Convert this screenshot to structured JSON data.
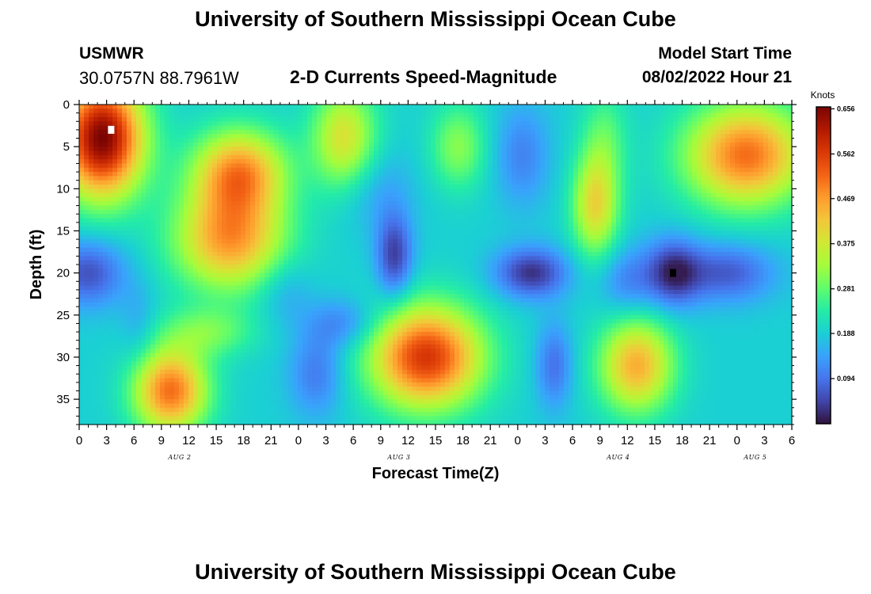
{
  "header": {
    "title": "University of Southern Mississippi Ocean Cube",
    "station_name": "USMWR",
    "station_coords": "30.0757N  88.7961W",
    "subtitle": "2-D Currents Speed-Magnitude",
    "model_start_label": "Model Start Time",
    "model_start_value": "08/02/2022 Hour 21"
  },
  "footer": {
    "title": "University of Southern Mississippi Ocean Cube"
  },
  "chart_data": {
    "type": "heatmap",
    "title": "2-D Currents Speed-Magnitude",
    "xlabel": "Forecast Time(Z)",
    "ylabel": "Depth (ft)",
    "colorbar_label": "Knots",
    "x_range_hours": [
      0,
      78
    ],
    "y_range_ft": [
      0,
      38
    ],
    "y_inverted": true,
    "x_tick_labels": [
      "0",
      "3",
      "6",
      "9",
      "12",
      "15",
      "18",
      "21",
      "0",
      "3",
      "6",
      "9",
      "12",
      "15",
      "18",
      "21",
      "0",
      "3",
      "6",
      "9",
      "12",
      "15",
      "18",
      "21",
      "0",
      "3",
      "6"
    ],
    "y_ticks": [
      0,
      5,
      10,
      15,
      20,
      25,
      30,
      35
    ],
    "date_labels": [
      {
        "text": "AUG 2",
        "hour": 11
      },
      {
        "text": "AUG 3",
        "hour": 35
      },
      {
        "text": "AUG 4",
        "hour": 59
      },
      {
        "text": "AUG 5",
        "hour": 74
      }
    ],
    "colorbar": {
      "min": 0.0,
      "max": 0.66,
      "ticks": [
        0.094,
        0.188,
        0.281,
        0.375,
        0.469,
        0.562,
        0.656
      ],
      "colors": [
        "#30123b",
        "#4145ab",
        "#4675ed",
        "#39a2fc",
        "#1bcfd4",
        "#24eca6",
        "#61fc6c",
        "#a4fc3c",
        "#d1e834",
        "#f3c63a",
        "#fe9b2d",
        "#f36315",
        "#d93806",
        "#b11901",
        "#7a0402"
      ]
    },
    "speed_field": {
      "base_knots": 0.19,
      "hotspots_hour_ft_knots": [
        [
          2.5,
          4,
          0.47,
          4.5,
          7
        ],
        [
          17.5,
          8,
          0.28,
          5,
          5
        ],
        [
          16.5,
          16,
          0.28,
          6,
          6
        ],
        [
          10,
          34,
          0.32,
          4,
          5
        ],
        [
          14,
          27,
          0.1,
          5,
          3
        ],
        [
          29,
          4,
          0.2,
          3.5,
          6
        ],
        [
          41.5,
          5,
          0.12,
          3,
          5
        ],
        [
          38,
          30,
          0.38,
          6,
          6
        ],
        [
          56.5,
          12,
          0.21,
          2.5,
          6
        ],
        [
          61,
          31,
          0.26,
          4,
          5.5
        ],
        [
          73,
          6,
          0.32,
          6.5,
          6
        ],
        [
          57.5,
          4,
          0.08,
          2.5,
          6
        ]
      ],
      "lows_hour_ft_knots": [
        [
          1,
          20,
          0.13,
          4,
          4
        ],
        [
          34.5,
          18,
          0.15,
          2,
          5
        ],
        [
          32.5,
          10,
          0.05,
          4,
          5
        ],
        [
          26,
          32,
          0.09,
          3,
          5
        ],
        [
          29,
          26,
          0.08,
          4,
          3
        ],
        [
          22.5,
          22,
          0.05,
          3,
          4
        ],
        [
          49.5,
          20,
          0.16,
          4,
          3
        ],
        [
          48.5,
          6,
          0.08,
          3,
          6
        ],
        [
          65,
          20,
          0.16,
          3,
          4
        ],
        [
          71,
          20,
          0.12,
          5,
          3.5
        ],
        [
          52,
          31,
          0.1,
          2,
          5
        ],
        [
          60,
          21,
          0.08,
          3,
          4
        ],
        [
          6.5,
          26,
          0.04,
          2,
          5
        ]
      ]
    },
    "markers": [
      {
        "hour": 3.5,
        "depth_ft": 3,
        "color": "#ffffff"
      },
      {
        "hour": 65,
        "depth_ft": 20,
        "color": "#000000"
      }
    ]
  }
}
